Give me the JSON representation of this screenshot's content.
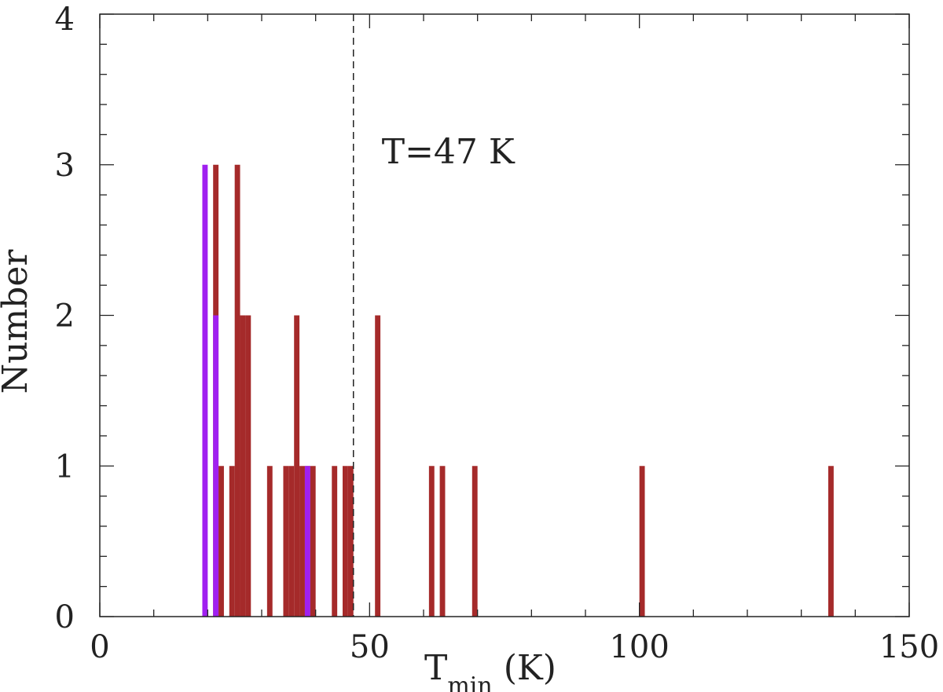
{
  "chart_data": {
    "type": "bar",
    "xlabel": "T",
    "xlabel_subscript": "min",
    "xlabel_unit": " (K)",
    "ylabel": "Number",
    "xlim": [
      0,
      150
    ],
    "ylim": [
      0,
      4
    ],
    "x_ticks": [
      0,
      50,
      100,
      150
    ],
    "y_ticks": [
      0,
      1,
      2,
      3,
      4
    ],
    "x_tick_labels": [
      "0",
      "50",
      "100",
      "150"
    ],
    "y_tick_labels": [
      "0",
      "1",
      "2",
      "3",
      "4"
    ],
    "bin_width": 1,
    "series": [
      {
        "color": "#a52a2a",
        "bins": [
          {
            "x": 21,
            "count": 3
          },
          {
            "x": 22,
            "count": 1
          },
          {
            "x": 24,
            "count": 1
          },
          {
            "x": 25,
            "count": 3
          },
          {
            "x": 26,
            "count": 2
          },
          {
            "x": 27,
            "count": 2
          },
          {
            "x": 31,
            "count": 1
          },
          {
            "x": 34,
            "count": 1
          },
          {
            "x": 35,
            "count": 1
          },
          {
            "x": 36,
            "count": 2
          },
          {
            "x": 37,
            "count": 1
          },
          {
            "x": 38,
            "count": 1
          },
          {
            "x": 39,
            "count": 1
          },
          {
            "x": 43,
            "count": 1
          },
          {
            "x": 45,
            "count": 1
          },
          {
            "x": 46,
            "count": 1
          },
          {
            "x": 51,
            "count": 2
          },
          {
            "x": 61,
            "count": 1
          },
          {
            "x": 63,
            "count": 1
          },
          {
            "x": 69,
            "count": 1
          },
          {
            "x": 100,
            "count": 1
          },
          {
            "x": 135,
            "count": 1
          }
        ]
      },
      {
        "color": "#a020f0",
        "bins": [
          {
            "x": 19,
            "count": 3
          },
          {
            "x": 21,
            "count": 2
          },
          {
            "x": 38,
            "count": 1
          }
        ]
      }
    ],
    "vline": {
      "x": 47,
      "style": "dashed",
      "label": "T=47 K"
    }
  }
}
